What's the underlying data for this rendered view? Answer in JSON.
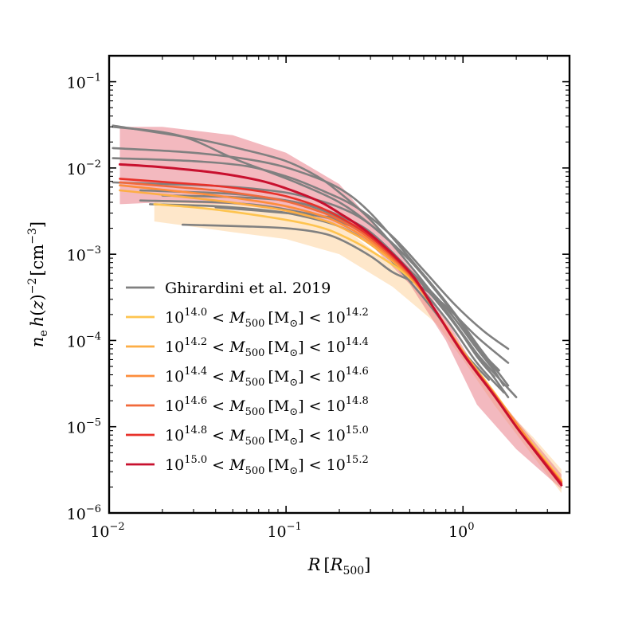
{
  "chart_data": {
    "type": "line",
    "xscale": "log",
    "yscale": "log",
    "xlim": [
      0.01,
      4.0
    ],
    "ylim": [
      1e-06,
      0.2
    ],
    "xlabel": "R [R500]",
    "ylabel": "n_e h(z)^-2 [cm^-3]",
    "x_ticks": [
      {
        "value": 0.01,
        "base": "10",
        "exp": "−2"
      },
      {
        "value": 0.1,
        "base": "10",
        "exp": "−1"
      },
      {
        "value": 1.0,
        "base": "10",
        "exp": "0"
      }
    ],
    "y_ticks": [
      {
        "value": 1e-06,
        "base": "10",
        "exp": "−6"
      },
      {
        "value": 1e-05,
        "base": "10",
        "exp": "−5"
      },
      {
        "value": 0.0001,
        "base": "10",
        "exp": "−4"
      },
      {
        "value": 0.001,
        "base": "10",
        "exp": "−3"
      },
      {
        "value": 0.01,
        "base": "10",
        "exp": "−2"
      },
      {
        "value": 0.1,
        "base": "10",
        "exp": "−1"
      }
    ],
    "legend": {
      "position": "lower-left",
      "observed_label": "Ghirardini et al. 2019",
      "mass_bins": [
        {
          "lo": "14.0",
          "hi": "14.2"
        },
        {
          "lo": "14.2",
          "hi": "14.4"
        },
        {
          "lo": "14.4",
          "hi": "14.6"
        },
        {
          "lo": "14.6",
          "hi": "14.8"
        },
        {
          "lo": "14.8",
          "hi": "15.0"
        },
        {
          "lo": "15.0",
          "hi": "15.2"
        }
      ]
    },
    "bands": [
      {
        "name": "lowest mass bin scatter",
        "color": "#fdd49e",
        "opacity": 0.55,
        "upper": [
          [
            0.018,
            0.0042
          ],
          [
            0.05,
            0.0038
          ],
          [
            0.1,
            0.0033
          ],
          [
            0.2,
            0.0022
          ],
          [
            0.4,
            0.00075
          ],
          [
            0.7,
            0.00022
          ],
          [
            1.0,
            7.2e-05
          ],
          [
            1.5,
            2.2e-05
          ],
          [
            2.5,
            7.5e-06
          ],
          [
            3.6,
            3.2e-06
          ]
        ],
        "lower": [
          [
            3.6,
            1.7e-06
          ],
          [
            2.5,
            4.5e-06
          ],
          [
            1.5,
            1.8e-05
          ],
          [
            1.0,
            6e-05
          ],
          [
            0.7,
            0.00016
          ],
          [
            0.4,
            0.00042
          ],
          [
            0.2,
            0.001
          ],
          [
            0.1,
            0.0015
          ],
          [
            0.05,
            0.0018
          ],
          [
            0.018,
            0.0024
          ]
        ]
      },
      {
        "name": "highest mass bin scatter",
        "color": "#e8747f",
        "opacity": 0.5,
        "upper": [
          [
            0.0115,
            0.03
          ],
          [
            0.02,
            0.03
          ],
          [
            0.05,
            0.024
          ],
          [
            0.1,
            0.015
          ],
          [
            0.2,
            0.0065
          ],
          [
            0.3,
            0.0025
          ],
          [
            0.5,
            0.00075
          ],
          [
            0.8,
            0.00018
          ],
          [
            1.2,
            4.5e-05
          ],
          [
            2.0,
            1.2e-05
          ],
          [
            3.6,
            2.8e-06
          ]
        ],
        "lower": [
          [
            3.6,
            1.9e-06
          ],
          [
            2.0,
            5.5e-06
          ],
          [
            1.2,
            1.8e-05
          ],
          [
            0.8,
            0.0001
          ],
          [
            0.5,
            0.00045
          ],
          [
            0.3,
            0.0013
          ],
          [
            0.2,
            0.0022
          ],
          [
            0.1,
            0.0032
          ],
          [
            0.05,
            0.0038
          ],
          [
            0.02,
            0.004
          ],
          [
            0.0115,
            0.0038
          ]
        ]
      }
    ],
    "series": [
      {
        "name": "10^14.0 < M500 < 10^14.2",
        "color": "#fec44f",
        "width": 2.6,
        "points": [
          [
            0.018,
            0.0038
          ],
          [
            0.03,
            0.0035
          ],
          [
            0.05,
            0.0031
          ],
          [
            0.1,
            0.0025
          ],
          [
            0.15,
            0.0021
          ],
          [
            0.2,
            0.0017
          ],
          [
            0.3,
            0.0011
          ],
          [
            0.5,
            0.00053
          ],
          [
            0.7,
            0.00022
          ],
          [
            1.0,
            7.5e-05
          ],
          [
            1.5,
            2.5e-05
          ],
          [
            2.0,
            1.1e-05
          ],
          [
            2.5,
            6.1e-06
          ],
          [
            3.6,
            2.4e-06
          ]
        ]
      },
      {
        "name": "10^14.2 < M500 < 10^14.4",
        "color": "#fdae45",
        "width": 2.6,
        "points": [
          [
            0.0115,
            0.0055
          ],
          [
            0.02,
            0.0049
          ],
          [
            0.04,
            0.0042
          ],
          [
            0.07,
            0.0036
          ],
          [
            0.1,
            0.0032
          ],
          [
            0.15,
            0.0026
          ],
          [
            0.2,
            0.0021
          ],
          [
            0.3,
            0.0013
          ],
          [
            0.5,
            0.00055
          ],
          [
            0.7,
            0.00022
          ],
          [
            1.0,
            7.4e-05
          ],
          [
            1.5,
            2.4e-05
          ],
          [
            2.0,
            1.1e-05
          ],
          [
            2.5,
            5.9e-06
          ],
          [
            3.6,
            2.3e-06
          ]
        ]
      },
      {
        "name": "10^14.4 < M500 < 10^14.6",
        "color": "#fd8d3c",
        "width": 2.6,
        "points": [
          [
            0.0115,
            0.0063
          ],
          [
            0.02,
            0.0056
          ],
          [
            0.04,
            0.0048
          ],
          [
            0.07,
            0.0041
          ],
          [
            0.1,
            0.0036
          ],
          [
            0.15,
            0.0029
          ],
          [
            0.2,
            0.0023
          ],
          [
            0.3,
            0.0014
          ],
          [
            0.5,
            0.00056
          ],
          [
            0.7,
            0.00022
          ],
          [
            1.0,
            7.3e-05
          ],
          [
            1.5,
            2.4e-05
          ],
          [
            2.0,
            1.1e-05
          ],
          [
            2.5,
            5.8e-06
          ],
          [
            3.6,
            2.3e-06
          ]
        ]
      },
      {
        "name": "10^14.6 < M500 < 10^14.8",
        "color": "#f16a3b",
        "width": 2.6,
        "points": [
          [
            0.0115,
            0.0068
          ],
          [
            0.02,
            0.0062
          ],
          [
            0.04,
            0.0055
          ],
          [
            0.07,
            0.0047
          ],
          [
            0.1,
            0.0041
          ],
          [
            0.15,
            0.0032
          ],
          [
            0.2,
            0.0025
          ],
          [
            0.3,
            0.0015
          ],
          [
            0.5,
            0.00058
          ],
          [
            0.7,
            0.00022
          ],
          [
            1.0,
            7.2e-05
          ],
          [
            1.5,
            2.4e-05
          ],
          [
            2.0,
            1e-05
          ],
          [
            2.5,
            5.7e-06
          ],
          [
            3.6,
            2.2e-06
          ]
        ]
      },
      {
        "name": "10^14.8 < M500 < 10^15.0",
        "color": "#e8312a",
        "width": 2.6,
        "points": [
          [
            0.0115,
            0.0075
          ],
          [
            0.02,
            0.0069
          ],
          [
            0.04,
            0.0062
          ],
          [
            0.07,
            0.0054
          ],
          [
            0.1,
            0.0047
          ],
          [
            0.15,
            0.0036
          ],
          [
            0.2,
            0.0027
          ],
          [
            0.3,
            0.0016
          ],
          [
            0.5,
            0.0006
          ],
          [
            0.7,
            0.00022
          ],
          [
            1.0,
            7.1e-05
          ],
          [
            1.5,
            2.3e-05
          ],
          [
            2.0,
            1e-05
          ],
          [
            2.5,
            5.6e-06
          ],
          [
            3.6,
            2.2e-06
          ]
        ]
      },
      {
        "name": "10^15.0 < M500 < 10^15.2",
        "color": "#c8102e",
        "width": 3.0,
        "points": [
          [
            0.0115,
            0.011
          ],
          [
            0.02,
            0.0102
          ],
          [
            0.04,
            0.0088
          ],
          [
            0.07,
            0.0072
          ],
          [
            0.1,
            0.0058
          ],
          [
            0.15,
            0.0042
          ],
          [
            0.2,
            0.003
          ],
          [
            0.3,
            0.0017
          ],
          [
            0.5,
            0.00062
          ],
          [
            0.7,
            0.00022
          ],
          [
            1.0,
            7e-05
          ],
          [
            1.5,
            2.3e-05
          ],
          [
            2.0,
            1e-05
          ],
          [
            2.5,
            5.5e-06
          ],
          [
            3.6,
            2.1e-06
          ]
        ]
      }
    ],
    "observed": {
      "name": "Ghirardini et al. 2019",
      "color": "#808080",
      "curves": [
        [
          [
            0.0105,
            0.031
          ],
          [
            0.03,
            0.022
          ],
          [
            0.06,
            0.016
          ],
          [
            0.1,
            0.012
          ],
          [
            0.15,
            0.008
          ],
          [
            0.2,
            0.0052
          ],
          [
            0.3,
            0.0025
          ],
          [
            0.5,
            0.00075
          ],
          [
            0.8,
            0.00022
          ],
          [
            1.2,
            7e-05
          ],
          [
            1.8,
            2.2e-05
          ]
        ],
        [
          [
            0.0105,
            0.03
          ],
          [
            0.02,
            0.026
          ],
          [
            0.03,
            0.021
          ],
          [
            0.05,
            0.013
          ],
          [
            0.08,
            0.009
          ],
          [
            0.12,
            0.0065
          ],
          [
            0.2,
            0.004
          ],
          [
            0.3,
            0.0022
          ],
          [
            0.5,
            0.00085
          ],
          [
            0.8,
            0.00028
          ],
          [
            1.2,
            9e-05
          ],
          [
            1.7,
            3e-05
          ]
        ],
        [
          [
            0.0105,
            0.017
          ],
          [
            0.03,
            0.015
          ],
          [
            0.07,
            0.012
          ],
          [
            0.12,
            0.009
          ],
          [
            0.2,
            0.0058
          ],
          [
            0.3,
            0.003
          ],
          [
            0.5,
            0.0009
          ],
          [
            0.8,
            0.00028
          ],
          [
            1.2,
            8.5e-05
          ],
          [
            1.6,
            4.5e-05
          ]
        ],
        [
          [
            0.0105,
            0.013
          ],
          [
            0.03,
            0.012
          ],
          [
            0.06,
            0.0105
          ],
          [
            0.1,
            0.008
          ],
          [
            0.15,
            0.0058
          ],
          [
            0.25,
            0.0035
          ],
          [
            0.4,
            0.0016
          ],
          [
            0.6,
            0.00065
          ],
          [
            0.9,
            0.00026
          ],
          [
            1.3,
            0.00013
          ],
          [
            1.8,
            8e-05
          ]
        ],
        [
          [
            0.0105,
            0.0068
          ],
          [
            0.04,
            0.0062
          ],
          [
            0.08,
            0.0055
          ],
          [
            0.12,
            0.0048
          ],
          [
            0.2,
            0.0035
          ],
          [
            0.3,
            0.0022
          ],
          [
            0.5,
            0.00085
          ],
          [
            0.8,
            0.00027
          ],
          [
            1.2,
            9e-05
          ],
          [
            1.8,
            3e-05
          ]
        ],
        [
          [
            0.015,
            0.0055
          ],
          [
            0.05,
            0.005
          ],
          [
            0.1,
            0.0042
          ],
          [
            0.15,
            0.0035
          ],
          [
            0.2,
            0.0028
          ],
          [
            0.3,
            0.0018
          ],
          [
            0.5,
            0.00065
          ],
          [
            0.8,
            0.00021
          ],
          [
            1.2,
            7e-05
          ],
          [
            2.0,
            2.2e-05
          ]
        ],
        [
          [
            0.015,
            0.0042
          ],
          [
            0.04,
            0.004
          ],
          [
            0.07,
            0.0037
          ],
          [
            0.1,
            0.0033
          ],
          [
            0.15,
            0.0028
          ],
          [
            0.2,
            0.0024
          ],
          [
            0.3,
            0.0016
          ],
          [
            0.5,
            0.00065
          ],
          [
            0.8,
            0.00022
          ],
          [
            1.2,
            6.5e-05
          ],
          [
            1.5,
            3.8e-05
          ]
        ],
        [
          [
            0.02,
            0.0048
          ],
          [
            0.05,
            0.0046
          ],
          [
            0.1,
            0.0042
          ],
          [
            0.15,
            0.0034
          ],
          [
            0.2,
            0.0026
          ],
          [
            0.3,
            0.0015
          ],
          [
            0.45,
            0.00062
          ],
          [
            0.7,
            0.00021
          ],
          [
            1.0,
            7.5e-05
          ],
          [
            1.4,
            3.5e-05
          ]
        ],
        [
          [
            0.017,
            0.0038
          ],
          [
            0.04,
            0.0036
          ],
          [
            0.08,
            0.0032
          ],
          [
            0.12,
            0.0028
          ],
          [
            0.2,
            0.0021
          ],
          [
            0.3,
            0.0013
          ],
          [
            0.5,
            0.00055
          ],
          [
            0.8,
            0.00018
          ],
          [
            1.2,
            5.5e-05
          ],
          [
            1.7,
            2.5e-05
          ]
        ],
        [
          [
            0.026,
            0.0022
          ],
          [
            0.06,
            0.0021
          ],
          [
            0.1,
            0.002
          ],
          [
            0.15,
            0.0018
          ],
          [
            0.2,
            0.0015
          ],
          [
            0.3,
            0.00095
          ],
          [
            0.4,
            0.00062
          ],
          [
            0.55,
            0.00045
          ],
          [
            0.8,
            0.00025
          ],
          [
            1.2,
            0.00011
          ],
          [
            1.8,
            5.5e-05
          ]
        ],
        [
          [
            0.04,
            0.0035
          ],
          [
            0.07,
            0.0032
          ],
          [
            0.1,
            0.003
          ],
          [
            0.15,
            0.0028
          ],
          [
            0.2,
            0.0025
          ],
          [
            0.3,
            0.0016
          ],
          [
            0.5,
            0.00065
          ],
          [
            0.8,
            0.00024
          ],
          [
            1.2,
            8e-05
          ],
          [
            1.5,
            4.5e-05
          ]
        ]
      ]
    }
  }
}
